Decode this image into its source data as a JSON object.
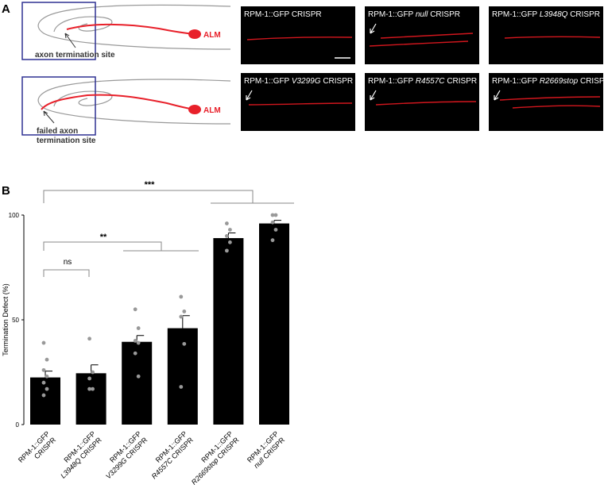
{
  "panel_a": {
    "label": "A",
    "schematic": {
      "cell": "ALM",
      "normal_site": "axon termination site",
      "failed_site": [
        "failed axon",
        "termination site"
      ]
    },
    "images": [
      {
        "strain": "RPM-1::GFP",
        "suffix": "CRISPR"
      },
      {
        "strain": "RPM-1::GFP",
        "allele": "null",
        "suffix": "CRISPR"
      },
      {
        "strain": "RPM-1::GFP",
        "allele": "L3948Q",
        "suffix": "CRISPR"
      },
      {
        "strain": "RPM-1::GFP",
        "allele": "V3299G",
        "suffix": "CRISPR"
      },
      {
        "strain": "RPM-1::GFP",
        "allele": "R4557C",
        "suffix": "CRISPR"
      },
      {
        "strain": "RPM-1::GFP",
        "allele": "R2669stop",
        "suffix": "CRISPR"
      }
    ]
  },
  "chart_data": {
    "type": "bar",
    "panel_label": "B",
    "y_label": "Termination Defect (%)",
    "categories": [
      {
        "strain": "RPM-1::GFP",
        "suffix": "CRISPR"
      },
      {
        "strain": "RPM-1::GFP",
        "allele": "L3948Q",
        "suffix": "CRISPR"
      },
      {
        "strain": "RPM-1::GFP",
        "allele": "V3299G",
        "suffix": "CRISPR"
      },
      {
        "strain": "RPM-1::GFP",
        "allele": "R4557C",
        "suffix": "CRISPR"
      },
      {
        "strain": "RPM-1::GFP",
        "allele": "R2669stop",
        "suffix": "CRISPR"
      },
      {
        "strain": "RPM-1::GFP",
        "allele": "null",
        "suffix": "CRISPR"
      }
    ],
    "values": [
      22.5,
      24.5,
      39.5,
      46,
      89,
      96
    ],
    "errors": [
      3,
      4,
      3,
      6,
      2.5,
      1.5
    ],
    "points": [
      [
        39,
        31,
        26,
        23,
        20,
        17,
        14
      ],
      [
        41,
        25,
        22,
        17,
        17
      ],
      [
        55,
        46,
        40,
        39,
        34,
        23
      ],
      [
        61,
        54,
        51.5,
        38.5,
        18
      ],
      [
        96,
        93,
        90,
        87,
        83
      ],
      [
        100,
        100,
        96.5,
        93,
        88
      ]
    ],
    "color": "#000000",
    "point_color": "#999999",
    "ylim": [
      0,
      100
    ],
    "yticks": [
      0,
      50,
      100
    ],
    "annotations": [
      "***",
      "**",
      "ns"
    ]
  }
}
